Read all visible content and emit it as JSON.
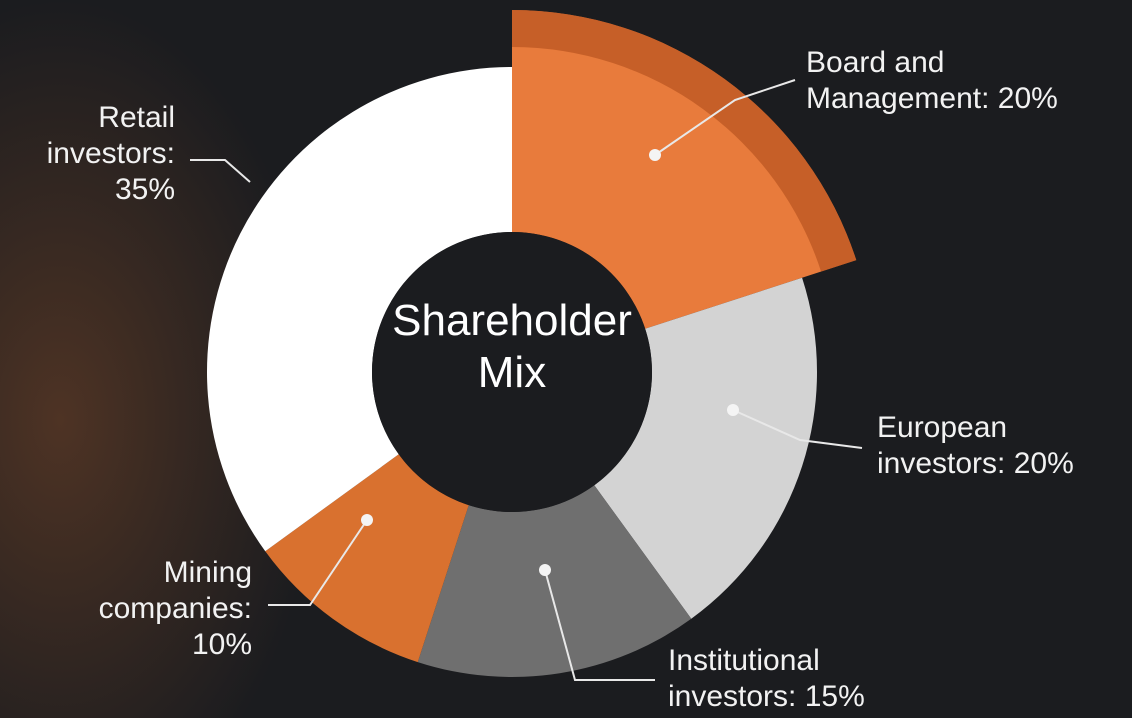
{
  "chart_data": {
    "type": "donut",
    "title": "Shareholder Mix",
    "categories": [
      "Board and Management: 20%",
      "European investors: 20%",
      "Institutional investors: 15%",
      "Mining companies: 10%",
      "Retail investors: 35%"
    ],
    "values": [
      20,
      20,
      15,
      10,
      35
    ],
    "colors": [
      "#e87b3c",
      "#d3d3d3",
      "#6f6f6f",
      "#d9712f",
      "#ffffff"
    ]
  }
}
